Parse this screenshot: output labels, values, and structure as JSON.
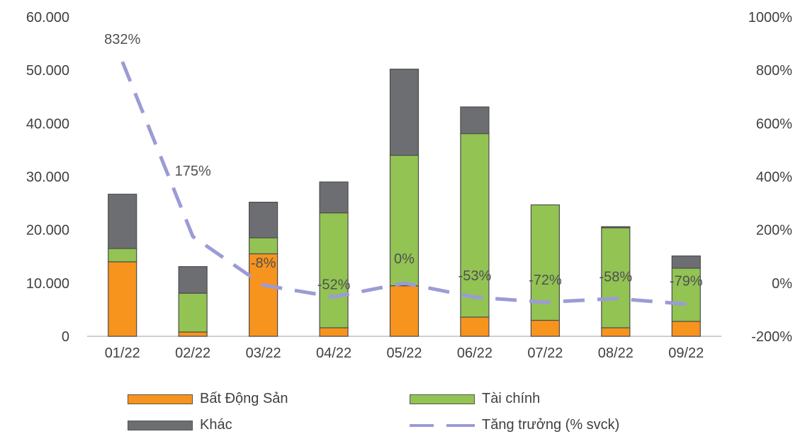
{
  "chart_data": {
    "type": "bar",
    "stacked": true,
    "categories": [
      "01/22",
      "02/22",
      "03/22",
      "04/22",
      "05/22",
      "06/22",
      "07/22",
      "08/22",
      "09/22"
    ],
    "series": [
      {
        "name": "Bất Động Sản",
        "color": "#f7941d",
        "values": [
          14000,
          800,
          15500,
          1600,
          9500,
          3600,
          3000,
          1600,
          2800
        ]
      },
      {
        "name": "Tài chính",
        "color": "#92c353",
        "values": [
          2500,
          7300,
          3000,
          21600,
          24500,
          34500,
          21700,
          18800,
          10000
        ]
      },
      {
        "name": "Khác",
        "color": "#6d6e71",
        "values": [
          10200,
          5000,
          6700,
          5800,
          16200,
          5000,
          0,
          200,
          2300
        ]
      }
    ],
    "line_series": {
      "name": "Tăng trưởng (% svck)",
      "color": "#9b9bd6",
      "axis": "right",
      "values": [
        832,
        175,
        -8,
        -52,
        0,
        -53,
        -72,
        -58,
        -79
      ],
      "labels": [
        "832%",
        "175%",
        "-8%",
        "-52%",
        "0%",
        "-53%",
        "-72%",
        "-58%",
        "-79%"
      ]
    },
    "y_left": {
      "min": 0,
      "max": 60000,
      "ticks": [
        "0",
        "10.000",
        "20.000",
        "30.000",
        "40.000",
        "50.000",
        "60.000"
      ],
      "tick_values": [
        0,
        10000,
        20000,
        30000,
        40000,
        50000,
        60000
      ]
    },
    "y_right": {
      "min": -200,
      "max": 1000,
      "ticks": [
        "-200%",
        "0%",
        "200%",
        "400%",
        "600%",
        "800%",
        "1000%"
      ],
      "tick_values": [
        -200,
        0,
        200,
        400,
        600,
        800,
        1000
      ]
    },
    "grid": false,
    "legend_position": "bottom"
  },
  "legend": {
    "bds": "Bất Động Sản",
    "tc": "Tài chính",
    "khac": "Khác",
    "growth": "Tăng trưởng (% svck)"
  }
}
